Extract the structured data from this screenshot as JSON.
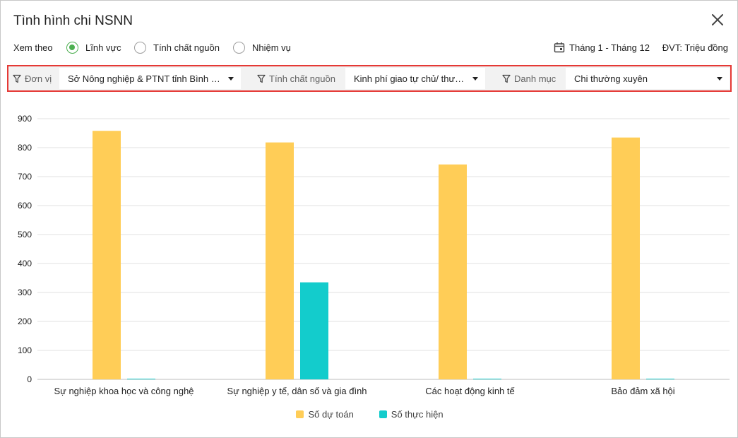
{
  "dialog": {
    "title": "Tình hình chi NSNN"
  },
  "view": {
    "label": "Xem theo",
    "options": [
      {
        "label": "Lĩnh vực",
        "selected": true
      },
      {
        "label": "Tính chất nguồn",
        "selected": false
      },
      {
        "label": "Nhiệm vụ",
        "selected": false
      }
    ],
    "period": "Tháng 1 - Tháng 12",
    "unit": "ĐVT: Triệu đồng"
  },
  "filters": {
    "unit": {
      "label": "Đơn vị",
      "value": "Sở Nông nghiệp & PTNT tỉnh Bình Định"
    },
    "source": {
      "label": "Tính chất nguồn",
      "value": "Kinh phí giao tự chủ/ thường xuyên"
    },
    "category": {
      "label": "Danh mục",
      "value": "Chi thường xuyên"
    }
  },
  "colors": {
    "estimate": "#ffcd57",
    "actual": "#13cccc",
    "accent": "#4caf50",
    "highlight": "#e53935"
  },
  "chart_data": {
    "type": "bar",
    "categories": [
      "Sự nghiệp khoa học và công nghệ",
      "Sự nghiệp y tế, dân số và gia đình",
      "Các hoạt động kinh tế",
      "Bảo đảm xã hội"
    ],
    "series": [
      {
        "name": "Số dự toán",
        "values": [
          858,
          818,
          742,
          835
        ]
      },
      {
        "name": "Số thực hiện",
        "values": [
          0,
          335,
          0,
          0
        ]
      }
    ],
    "ylim": [
      0,
      900
    ],
    "yticks": [
      0,
      100,
      200,
      300,
      400,
      500,
      600,
      700,
      800,
      900
    ],
    "grid": true,
    "legend": "bottom"
  }
}
